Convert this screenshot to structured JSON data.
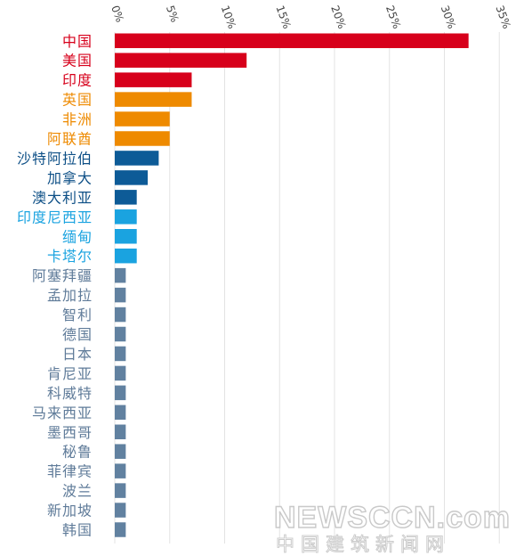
{
  "chart_data": {
    "type": "bar",
    "orientation": "horizontal",
    "x_ticks": [
      "0%",
      "5%",
      "10%",
      "15%",
      "20%",
      "25%",
      "30%",
      "35%"
    ],
    "xlim": [
      0,
      35
    ],
    "grid": true,
    "categories": [
      "中国",
      "美国",
      "印度",
      "英国",
      "非洲",
      "阿联酋",
      "沙特阿拉伯",
      "加拿大",
      "澳大利亚",
      "印度尼西亚",
      "缅甸",
      "卡塔尔",
      "阿塞拜疆",
      "孟加拉",
      "智利",
      "德国",
      "日本",
      "肯尼亚",
      "科威特",
      "马来西亚",
      "墨西哥",
      "秘鲁",
      "菲律宾",
      "波兰",
      "新加坡",
      "韩国"
    ],
    "values": [
      32.2,
      12.0,
      7.0,
      7.0,
      5.0,
      5.0,
      4.0,
      3.0,
      2.0,
      2.0,
      2.0,
      2.0,
      1.0,
      1.0,
      1.0,
      1.0,
      1.0,
      1.0,
      1.0,
      1.0,
      1.0,
      1.0,
      1.0,
      1.0,
      1.0,
      1.0
    ],
    "bar_colors": [
      "#d7001b",
      "#d7001b",
      "#d7001b",
      "#ee8a00",
      "#ee8a00",
      "#ee8a00",
      "#0d5b97",
      "#0d5b97",
      "#0d5b97",
      "#1aa3e0",
      "#1aa3e0",
      "#1aa3e0",
      "#6181a0",
      "#6181a0",
      "#6181a0",
      "#6181a0",
      "#6181a0",
      "#6181a0",
      "#6181a0",
      "#6181a0",
      "#6181a0",
      "#6181a0",
      "#6181a0",
      "#6181a0",
      "#6181a0",
      "#6181a0"
    ],
    "label_colors": [
      "#d7001b",
      "#d7001b",
      "#d7001b",
      "#ee8a00",
      "#ee8a00",
      "#ee8a00",
      "#0d4f86",
      "#0d4f86",
      "#0d4f86",
      "#1aa3e0",
      "#1aa3e0",
      "#1aa3e0",
      "#5f7b99",
      "#5f7b99",
      "#5f7b99",
      "#5f7b99",
      "#5f7b99",
      "#5f7b99",
      "#5f7b99",
      "#5f7b99",
      "#5f7b99",
      "#5f7b99",
      "#5f7b99",
      "#5f7b99",
      "#5f7b99",
      "#5f7b99"
    ]
  },
  "watermark": {
    "logo_text": "NEWSCCN.com",
    "sub_text": "中国建筑新闻网"
  }
}
